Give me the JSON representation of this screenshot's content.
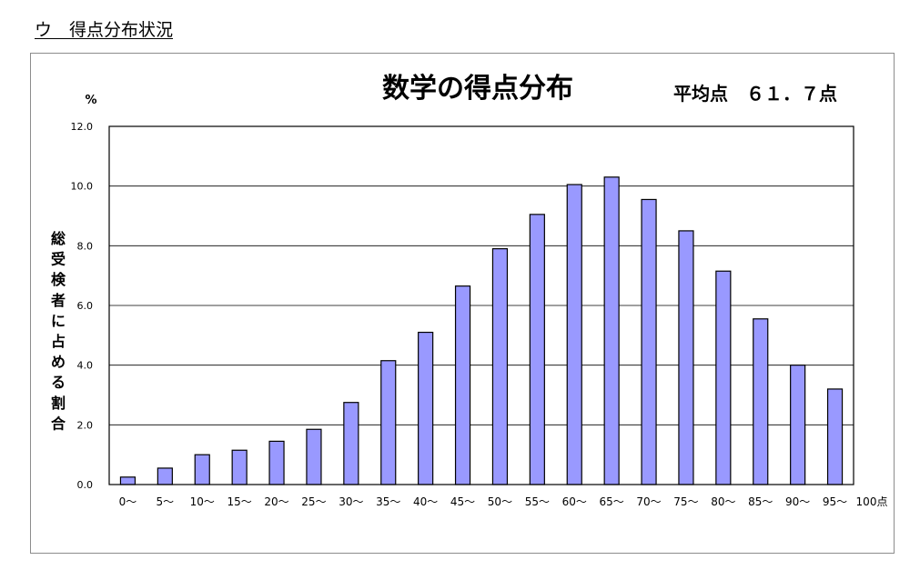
{
  "heading": "ウ　得点分布状況",
  "chart_data": {
    "type": "bar",
    "title": "数学の得点分布",
    "annotation": "平均点　６１．７点",
    "ylabel": "総受検者に占める割合",
    "y_unit": "%",
    "xlabel": "",
    "x_end_label": "100点",
    "categories": [
      "0～",
      "5～",
      "10～",
      "15～",
      "20～",
      "25～",
      "30～",
      "35～",
      "40～",
      "45～",
      "50～",
      "55～",
      "60～",
      "65～",
      "70～",
      "75～",
      "80～",
      "85～",
      "90～",
      "95～"
    ],
    "values": [
      0.25,
      0.55,
      1.0,
      1.15,
      1.45,
      1.85,
      2.75,
      4.15,
      5.1,
      6.65,
      7.9,
      9.05,
      10.05,
      10.3,
      9.55,
      8.5,
      7.15,
      5.55,
      4.0,
      3.2
    ],
    "y_ticks": [
      "0.0",
      "2.0",
      "4.0",
      "6.0",
      "8.0",
      "10.0",
      "12.0"
    ],
    "ylim": [
      0,
      12
    ],
    "grid": true,
    "legend": "none",
    "colors": {
      "bar_fill": "#9999ff",
      "bar_stroke": "#000000",
      "grid": "#000000"
    }
  }
}
